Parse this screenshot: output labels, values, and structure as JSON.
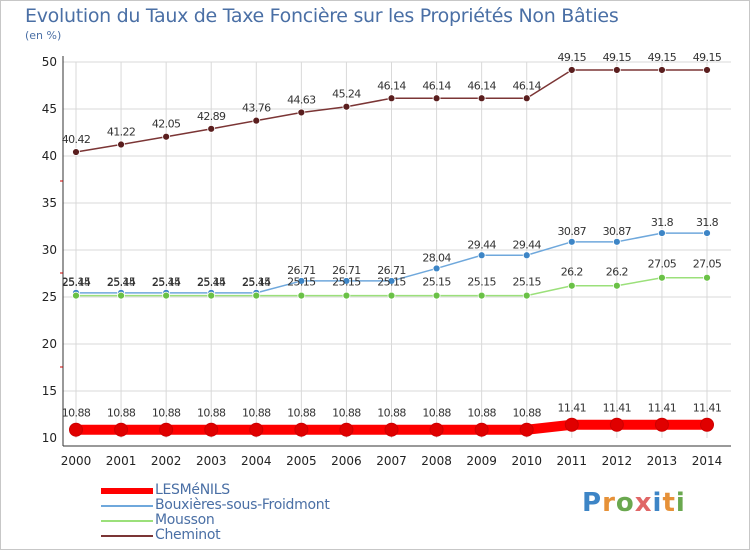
{
  "chart_data": {
    "type": "line",
    "title": "Evolution du Taux de Taxe Foncière sur les Propriétés Non Bâties",
    "unit_label": "(en %)",
    "categories": [
      "2000",
      "2001",
      "2002",
      "2003",
      "2004",
      "2005",
      "2006",
      "2007",
      "2008",
      "2009",
      "2010",
      "2011",
      "2012",
      "2013",
      "2014"
    ],
    "ylim": [
      10,
      50
    ],
    "yticks": [
      10,
      15,
      20,
      25,
      30,
      35,
      40,
      45,
      50
    ],
    "grid": true,
    "legend_position": "bottom-left",
    "series": [
      {
        "key": "lesmenils",
        "name": "LESMéNILS",
        "color": "#ff0000",
        "marker": "#e00000",
        "values": [
          10.88,
          10.88,
          10.88,
          10.88,
          10.88,
          10.88,
          10.88,
          10.88,
          10.88,
          10.88,
          10.88,
          11.41,
          11.41,
          11.41,
          11.41
        ],
        "labels": [
          "10.88",
          "10.88",
          "10.88",
          "10.88",
          "10.88",
          "10.88",
          "10.88",
          "10.88",
          "10.88",
          "10.88",
          "10.88",
          "11.41",
          "11.41",
          "11.41",
          "11.41"
        ]
      },
      {
        "key": "bouxieres",
        "name": "Bouxières-sous-Froidmont",
        "color": "#6fa8dc",
        "marker": "#3d85c6",
        "values": [
          25.44,
          25.44,
          25.44,
          25.44,
          25.44,
          26.71,
          26.71,
          26.71,
          28.04,
          29.44,
          29.44,
          30.87,
          30.87,
          31.8,
          31.8
        ],
        "labels": [
          "25.44",
          "25.44",
          "25.44",
          "25.44",
          "25.44",
          "26.71",
          "26.71",
          "26.71",
          "28.04",
          "29.44",
          "29.44",
          "30.87",
          "30.87",
          "31.8",
          "31.8"
        ]
      },
      {
        "key": "mousson",
        "name": "Mousson",
        "color": "#9be07a",
        "marker": "#6ac146",
        "values": [
          25.15,
          25.15,
          25.15,
          25.15,
          25.15,
          25.15,
          25.15,
          25.15,
          25.15,
          25.15,
          25.15,
          26.2,
          26.2,
          27.05,
          27.05
        ],
        "labels": [
          "25.15",
          "25.15",
          "25.15",
          "25.15",
          "25.15",
          "25.15",
          "25.15",
          "25.15",
          "25.15",
          "25.15",
          "25.15",
          "26.2",
          "26.2",
          "27.05",
          "27.05"
        ]
      },
      {
        "key": "cheminot",
        "name": "Cheminot",
        "color": "#7b3535",
        "marker": "#5a1e1e",
        "values": [
          40.42,
          41.22,
          42.05,
          42.89,
          43.76,
          44.63,
          45.24,
          46.14,
          46.14,
          46.14,
          46.14,
          49.15,
          49.15,
          49.15,
          49.15
        ],
        "labels": [
          "40.42",
          "41.22",
          "42.05",
          "42.89",
          "43.76",
          "44.63",
          "45.24",
          "46.14",
          "46.14",
          "46.14",
          "46.14",
          "49.15",
          "49.15",
          "49.15",
          "49.15"
        ]
      }
    ]
  },
  "logo": {
    "letters": [
      "P",
      "r",
      "o",
      "x",
      "i",
      "t",
      "i"
    ],
    "colors": [
      "#3d85c6",
      "#e69138",
      "#6aa84f",
      "#e06666",
      "#3d85c6",
      "#e69138",
      "#6aa84f"
    ]
  }
}
